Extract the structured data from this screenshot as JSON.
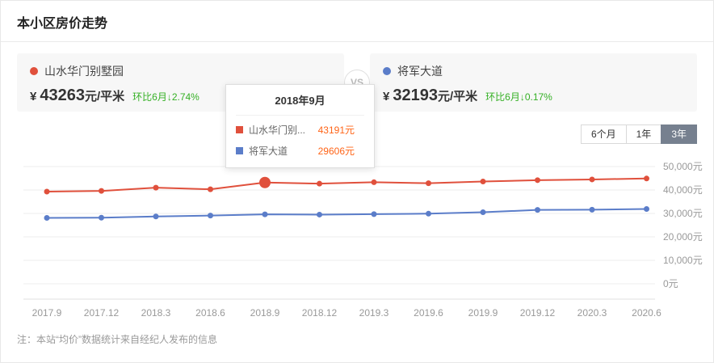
{
  "page": {
    "title": "本小区房价走势",
    "note": "注：本站“均价”数据统计来自经纪人发布的信息"
  },
  "summary": {
    "vs_label": "VS",
    "left": {
      "name": "山水华门别墅园",
      "currency": "¥",
      "price": "43263",
      "unit": "元/平米",
      "change": "环比6月↓2.74%",
      "change_color": "#35b025",
      "color": "#e0503c"
    },
    "right": {
      "name": "将军大道",
      "currency": "¥",
      "price": "32193",
      "unit": "元/平米",
      "change": "环比6月↓0.17%",
      "change_color": "#35b025",
      "color": "#5b7dc9"
    }
  },
  "range_buttons": [
    {
      "label": "6个月",
      "active": false
    },
    {
      "label": "1年",
      "active": false
    },
    {
      "label": "3年",
      "active": true
    }
  ],
  "tooltip": {
    "title": "2018年9月",
    "value_color": "#ff6417",
    "rows": [
      {
        "label": "山水华门别...",
        "value": "43191元",
        "color": "#e0503c"
      },
      {
        "label": "将军大道",
        "value": "29606元",
        "color": "#5b7dc9"
      }
    ]
  },
  "chart_data": {
    "type": "line",
    "title": "本小区房价走势",
    "x": [
      "2017.9",
      "2017.12",
      "2018.3",
      "2018.6",
      "2018.9",
      "2018.12",
      "2019.3",
      "2019.6",
      "2019.9",
      "2019.12",
      "2020.3",
      "2020.6"
    ],
    "series": [
      {
        "name": "山水华门别墅园",
        "color": "#e0503c",
        "values": [
          39300,
          39600,
          41000,
          40300,
          43191,
          42700,
          43300,
          42900,
          43600,
          44200,
          44500,
          44900
        ]
      },
      {
        "name": "将军大道",
        "color": "#5b7dc9",
        "values": [
          28100,
          28200,
          28700,
          29100,
          29606,
          29500,
          29700,
          29900,
          30500,
          31500,
          31600,
          31900
        ]
      }
    ],
    "highlight": {
      "series": 0,
      "index": 4,
      "note": "2018年9月 tooltip point"
    },
    "ylim": [
      0,
      50000
    ],
    "yticks": [
      {
        "value": 0,
        "label": "0元"
      },
      {
        "value": 10000,
        "label": "10,000元"
      },
      {
        "value": 20000,
        "label": "20,000元"
      },
      {
        "value": 30000,
        "label": "30,000元"
      },
      {
        "value": 40000,
        "label": "40,000元"
      },
      {
        "value": 50000,
        "label": "50,000元"
      }
    ],
    "grid": true,
    "legend_position": "tooltip-only",
    "y_axis_side": "right"
  }
}
